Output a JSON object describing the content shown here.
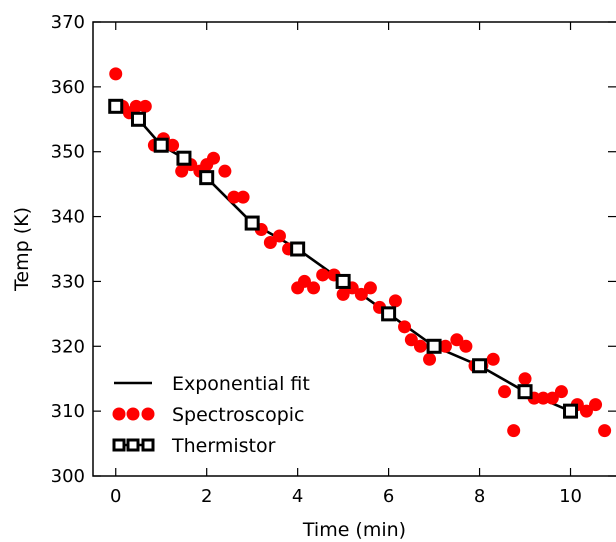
{
  "chart_data": {
    "type": "scatter",
    "title": "",
    "xlabel": "Time (min)",
    "ylabel": "Temp (K)",
    "xlim": [
      -0.5,
      11
    ],
    "ylim": [
      300,
      370
    ],
    "xticks": [
      0,
      2,
      4,
      6,
      8,
      10
    ],
    "yticks": [
      300,
      310,
      320,
      330,
      340,
      350,
      360,
      370
    ],
    "grid": false,
    "legend_position": "lower-left",
    "series": [
      {
        "name": "Exponential fit",
        "kind": "line",
        "color": "#000000",
        "x": [
          0,
          0.5,
          1,
          1.5,
          2,
          3,
          4,
          5,
          6,
          7,
          8,
          9,
          10
        ],
        "y": [
          357,
          355,
          351,
          349,
          346,
          339,
          335,
          330,
          325,
          320,
          317,
          313,
          310
        ]
      },
      {
        "name": "Spectroscopic",
        "kind": "scatter",
        "color": "#ff0000",
        "x": [
          0,
          0.15,
          0.3,
          0.45,
          0.65,
          0.85,
          1.05,
          1.25,
          1.45,
          1.65,
          1.85,
          2.0,
          2.15,
          2.4,
          2.6,
          2.8,
          3.0,
          3.2,
          3.4,
          3.6,
          3.8,
          4.0,
          4.15,
          4.35,
          4.55,
          4.8,
          5.0,
          5.2,
          5.4,
          5.6,
          5.8,
          6.0,
          6.15,
          6.35,
          6.5,
          6.7,
          6.9,
          7.05,
          7.25,
          7.5,
          7.7,
          7.9,
          8.05,
          8.3,
          8.55,
          8.75,
          9.0,
          9.2,
          9.4,
          9.6,
          9.8,
          10.0,
          10.15,
          10.35,
          10.55,
          10.75
        ],
        "y": [
          362,
          357,
          356,
          357,
          357,
          351,
          352,
          351,
          347,
          348,
          347,
          348,
          349,
          347,
          343,
          343,
          339,
          338,
          336,
          337,
          335,
          329,
          330,
          329,
          331,
          331,
          328,
          329,
          328,
          329,
          326,
          325,
          327,
          323,
          321,
          320,
          318,
          320,
          320,
          321,
          320,
          317,
          317,
          318,
          313,
          307,
          315,
          312,
          312,
          312,
          313,
          310,
          311,
          310,
          311,
          307
        ]
      },
      {
        "name": "Thermistor",
        "kind": "marker",
        "color": "#000000",
        "marker": "square-open",
        "x": [
          0,
          0.5,
          1,
          1.5,
          2,
          3,
          4,
          5,
          6,
          7,
          8,
          9,
          10
        ],
        "y": [
          357,
          355,
          351,
          349,
          346,
          339,
          335,
          330,
          325,
          320,
          317,
          313,
          310
        ]
      }
    ]
  }
}
